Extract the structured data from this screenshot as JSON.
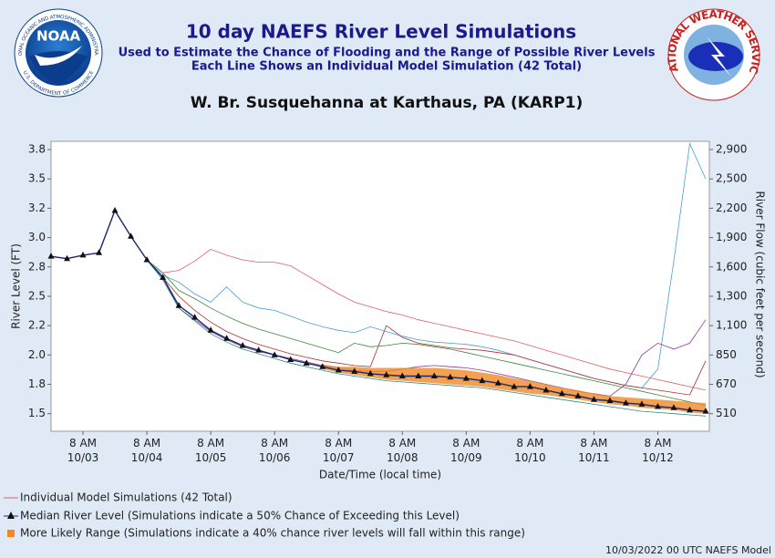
{
  "chart_data": {
    "type": "line",
    "title": "10 day NAEFS River Level Simulations",
    "subtitle": "Used to Estimate the Chance of Flooding and the Range of Possible River Levels",
    "subtitle2": "Each Line Shows an Individual Model Simulation (42 Total)",
    "location": "W. Br. Susquehanna at Karthaus, PA (KARP1)",
    "logos": {
      "noaa": "NOAA",
      "noaa_ring": "NATIONAL OCEANIC AND ATMOSPHERIC ADMINISTRATION",
      "noaa_ring2": "U.S. DEPARTMENT OF COMMERCE",
      "nws": "NATIONAL WEATHER SERVICE"
    },
    "xlabel": "Date/Time (local time)",
    "ylabel": "River Level (FT)",
    "y2label": "River Flow (cubic feet per second)",
    "footer": "10/03/2022 00 UTC NAEFS Model",
    "x": [
      "10/02 8 PM",
      "10/03 2 AM",
      "10/03 8 AM",
      "10/03 2 PM",
      "10/03 8 PM",
      "10/04 2 AM",
      "10/04 8 AM",
      "10/04 2 PM",
      "10/04 8 PM",
      "10/05 2 AM",
      "10/05 8 AM",
      "10/05 2 PM",
      "10/05 8 PM",
      "10/06 2 AM",
      "10/06 8 AM",
      "10/06 2 PM",
      "10/06 8 PM",
      "10/07 2 AM",
      "10/07 8 AM",
      "10/07 2 PM",
      "10/07 8 PM",
      "10/08 2 AM",
      "10/08 8 AM",
      "10/08 2 PM",
      "10/08 8 PM",
      "10/09 2 AM",
      "10/09 8 AM",
      "10/09 2 PM",
      "10/09 8 PM",
      "10/10 2 AM",
      "10/10 8 AM",
      "10/10 2 PM",
      "10/10 8 PM",
      "10/11 2 AM",
      "10/11 8 AM",
      "10/11 2 PM",
      "10/11 8 PM",
      "10/12 2 AM",
      "10/12 8 AM",
      "10/12 2 PM",
      "10/12 8 PM",
      "10/13 2 AM"
    ],
    "xticks": [
      {
        "value": "10/03 8 AM",
        "label": "8 AM\n10/03"
      },
      {
        "value": "10/04 8 AM",
        "label": "8 AM\n10/04"
      },
      {
        "value": "10/05 8 AM",
        "label": "8 AM\n10/05"
      },
      {
        "value": "10/06 8 AM",
        "label": "8 AM\n10/06"
      },
      {
        "value": "10/07 8 AM",
        "label": "8 AM\n10/07"
      },
      {
        "value": "10/08 8 AM",
        "label": "8 AM\n10/08"
      },
      {
        "value": "10/09 8 AM",
        "label": "8 AM\n10/09"
      },
      {
        "value": "10/10 8 AM",
        "label": "8 AM\n10/10"
      },
      {
        "value": "10/11 8 AM",
        "label": "8 AM\n10/11"
      },
      {
        "value": "10/12 8 AM",
        "label": "8 AM\n10/12"
      }
    ],
    "ylim": [
      1.35,
      3.82
    ],
    "yticks": [
      {
        "value": 1.5,
        "label": "1.5"
      },
      {
        "value": 1.75,
        "label": "1.8"
      },
      {
        "value": 2.0,
        "label": "2.0"
      },
      {
        "value": 2.25,
        "label": "2.2"
      },
      {
        "value": 2.5,
        "label": "2.5"
      },
      {
        "value": 2.75,
        "label": "2.8"
      },
      {
        "value": 3.0,
        "label": "3.0"
      },
      {
        "value": 3.25,
        "label": "3.2"
      },
      3.5,
      {
        "value": 3.75,
        "label": "3.8"
      }
    ],
    "y2ticks": [
      510,
      670,
      850,
      {
        "value": 1100,
        "label": "1,100"
      },
      {
        "value": 1300,
        "label": "1,300"
      },
      {
        "value": 1600,
        "label": "1,600"
      },
      {
        "value": 1900,
        "label": "1,900"
      },
      {
        "value": 2200,
        "label": "2,200"
      },
      {
        "value": 2500,
        "label": "2,500"
      },
      {
        "value": 2900,
        "label": "2,900"
      }
    ],
    "grid": false,
    "simulations": {
      "name": "Individual Model Simulations (42 Total)",
      "color": "#e06060",
      "lines": [
        {
          "color": "#e06060",
          "values": [
            2.84,
            2.82,
            2.85,
            2.87,
            3.23,
            3.01,
            2.81,
            2.7,
            2.72,
            2.8,
            2.9,
            2.85,
            2.81,
            2.79,
            2.79,
            2.76,
            2.68,
            2.6,
            2.52,
            2.45,
            2.41,
            2.37,
            2.34,
            2.3,
            2.27,
            2.24,
            2.21,
            2.18,
            2.15,
            2.12,
            2.08,
            2.04,
            2.0,
            1.96,
            1.92,
            1.88,
            1.85,
            1.82,
            1.79,
            1.76,
            1.73,
            1.7
          ]
        },
        {
          "color": "#4a9fd0",
          "values": [
            2.84,
            2.82,
            2.85,
            2.87,
            3.23,
            3.01,
            2.81,
            2.68,
            2.62,
            2.52,
            2.45,
            2.58,
            2.45,
            2.4,
            2.38,
            2.33,
            2.28,
            2.24,
            2.21,
            2.19,
            2.24,
            2.2,
            2.16,
            2.13,
            2.11,
            2.1,
            2.09,
            2.07,
            2.04,
            2.0,
            1.96,
            1.92,
            1.88,
            1.84,
            1.8,
            1.77,
            1.74,
            1.72,
            1.88,
            2.8,
            3.8,
            3.5
          ]
        },
        {
          "color": "#8b3a9e",
          "values": [
            2.84,
            2.82,
            2.85,
            2.87,
            3.23,
            3.01,
            2.81,
            2.66,
            2.4,
            2.3,
            2.2,
            2.13,
            2.07,
            2.03,
            2.0,
            1.97,
            1.94,
            1.91,
            1.89,
            1.87,
            1.86,
            1.86,
            1.88,
            1.9,
            1.91,
            1.9,
            1.89,
            1.87,
            1.84,
            1.81,
            1.78,
            1.75,
            1.72,
            1.69,
            1.67,
            1.65,
            1.75,
            2.0,
            2.1,
            2.05,
            2.1,
            2.3
          ]
        },
        {
          "color": "#b03030",
          "values": [
            2.84,
            2.82,
            2.85,
            2.87,
            3.23,
            3.01,
            2.81,
            2.66,
            2.5,
            2.38,
            2.28,
            2.2,
            2.14,
            2.09,
            2.05,
            2.01,
            1.98,
            1.95,
            1.93,
            1.91,
            1.9,
            2.25,
            2.15,
            2.1,
            2.08,
            2.06,
            2.05,
            2.04,
            2.02,
            2.0,
            1.96,
            1.92,
            1.88,
            1.84,
            1.8,
            1.77,
            1.74,
            1.72,
            1.7,
            1.68,
            1.66,
            1.95
          ]
        },
        {
          "color": "#3a8a3a",
          "values": [
            2.84,
            2.82,
            2.85,
            2.87,
            3.23,
            3.01,
            2.81,
            2.7,
            2.55,
            2.48,
            2.4,
            2.33,
            2.27,
            2.22,
            2.18,
            2.14,
            2.1,
            2.06,
            2.02,
            2.1,
            2.07,
            2.08,
            2.1,
            2.09,
            2.07,
            2.05,
            2.02,
            1.99,
            1.96,
            1.93,
            1.9,
            1.87,
            1.84,
            1.81,
            1.78,
            1.75,
            1.72,
            1.69,
            1.66,
            1.63,
            1.6,
            1.57
          ]
        },
        {
          "color": "#2a8a8a",
          "values": [
            2.84,
            2.82,
            2.85,
            2.87,
            3.23,
            3.01,
            2.81,
            2.64,
            2.4,
            2.29,
            2.18,
            2.11,
            2.05,
            2.01,
            1.97,
            1.93,
            1.9,
            1.87,
            1.84,
            1.82,
            1.8,
            1.78,
            1.77,
            1.76,
            1.75,
            1.74,
            1.73,
            1.72,
            1.7,
            1.68,
            1.66,
            1.64,
            1.62,
            1.6,
            1.58,
            1.56,
            1.54,
            1.52,
            1.51,
            1.5,
            1.49,
            1.48
          ]
        }
      ]
    },
    "likely_range": {
      "name": "More Likely Range (Simulations indicate a 40% chance river levels will fall within this range)",
      "color": "#f08a24",
      "upper": [
        null,
        null,
        null,
        null,
        null,
        null,
        null,
        null,
        null,
        null,
        null,
        null,
        null,
        null,
        null,
        null,
        null,
        1.92,
        1.9,
        1.9,
        1.89,
        1.89,
        1.89,
        1.89,
        1.89,
        1.88,
        1.87,
        1.85,
        1.83,
        1.8,
        1.78,
        1.75,
        1.72,
        1.7,
        1.67,
        1.65,
        1.64,
        1.63,
        1.62,
        1.61,
        1.6,
        1.59
      ],
      "lower": [
        null,
        null,
        null,
        null,
        null,
        null,
        null,
        null,
        null,
        null,
        null,
        null,
        null,
        null,
        null,
        null,
        null,
        1.88,
        1.85,
        1.83,
        1.81,
        1.79,
        1.78,
        1.77,
        1.76,
        1.75,
        1.74,
        1.73,
        1.71,
        1.69,
        1.67,
        1.66,
        1.64,
        1.62,
        1.6,
        1.58,
        1.57,
        1.55,
        1.54,
        1.53,
        1.51,
        1.5
      ]
    },
    "median": {
      "name": "Median River Level (Simulations indicate a 50% Chance of Exceeding this Level)",
      "color": "#1a2a6a",
      "values": [
        2.84,
        2.82,
        2.85,
        2.87,
        3.23,
        3.01,
        2.81,
        2.66,
        2.42,
        2.32,
        2.21,
        2.14,
        2.08,
        2.04,
        2.0,
        1.96,
        1.93,
        1.9,
        1.87,
        1.86,
        1.84,
        1.83,
        1.82,
        1.82,
        1.82,
        1.81,
        1.8,
        1.78,
        1.76,
        1.73,
        1.73,
        1.7,
        1.67,
        1.65,
        1.62,
        1.61,
        1.59,
        1.58,
        1.56,
        1.55,
        1.53,
        1.52
      ]
    }
  }
}
